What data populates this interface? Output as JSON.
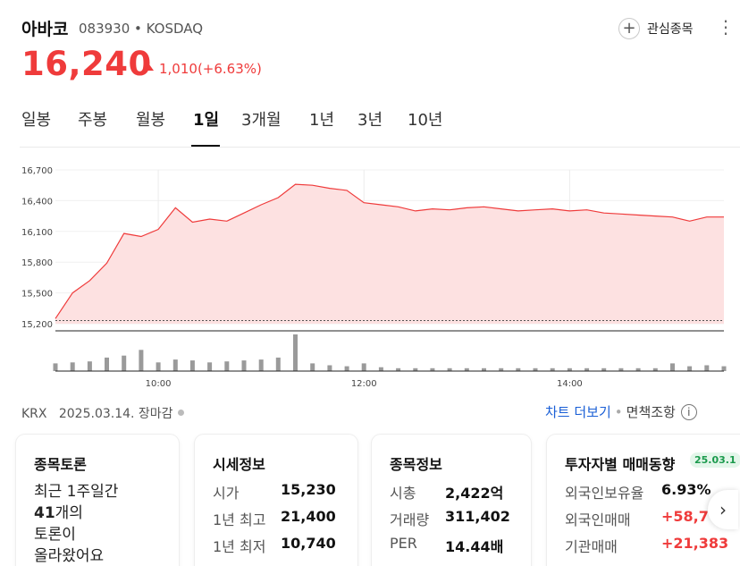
{
  "stock": {
    "name": "아바코",
    "code_market": "083930 • KOSDAQ",
    "price": "16,240",
    "change": "1,010(+6.63%)"
  },
  "header": {
    "watchlist_label": "관심종목",
    "plus_icon": "plus-icon",
    "more_icon": "kebab-menu-icon"
  },
  "tabs": [
    {
      "label": "일봉",
      "active": false
    },
    {
      "label": "주봉",
      "active": false
    },
    {
      "label": "월봉",
      "active": false
    },
    {
      "label": "1일",
      "active": true
    },
    {
      "label": "3개월",
      "active": false
    },
    {
      "label": "1년",
      "active": false
    },
    {
      "label": "3년",
      "active": false
    },
    {
      "label": "10년",
      "active": false
    }
  ],
  "colors": {
    "up": "#ef3b3b",
    "area_fill": "#fde1e1",
    "link": "#1a5fd6",
    "volume": "#9a9a9a"
  },
  "chart_data": {
    "type": "area",
    "y_ticks": [
      "16,700",
      "16,400",
      "16,100",
      "15,800",
      "15,500",
      "15,200"
    ],
    "ylim": [
      15200,
      16700
    ],
    "x_ticks": [
      "10:00",
      "12:00",
      "14:00"
    ],
    "prev_close": 15230,
    "x": [
      "09:00",
      "09:10",
      "09:20",
      "09:30",
      "09:40",
      "09:50",
      "10:00",
      "10:10",
      "10:20",
      "10:30",
      "10:40",
      "10:50",
      "11:00",
      "11:10",
      "11:20",
      "11:30",
      "11:40",
      "11:50",
      "12:00",
      "12:10",
      "12:20",
      "12:30",
      "12:40",
      "12:50",
      "13:00",
      "13:10",
      "13:20",
      "13:30",
      "13:40",
      "13:50",
      "14:00",
      "14:10",
      "14:20",
      "14:30",
      "14:40",
      "14:50",
      "15:00",
      "15:10",
      "15:20",
      "15:30"
    ],
    "price": [
      15250,
      15500,
      15620,
      15790,
      16080,
      16050,
      16120,
      16330,
      16190,
      16220,
      16200,
      16280,
      16360,
      16430,
      16560,
      16550,
      16520,
      16500,
      16380,
      16360,
      16340,
      16300,
      16320,
      16310,
      16330,
      16340,
      16320,
      16300,
      16310,
      16320,
      16300,
      16310,
      16280,
      16270,
      16260,
      16250,
      16240,
      16200,
      16240,
      16240
    ],
    "volume": [
      8,
      9,
      10,
      14,
      16,
      22,
      9,
      12,
      11,
      9,
      10,
      11,
      12,
      14,
      38,
      8,
      6,
      5,
      8,
      4,
      3,
      3,
      3,
      3,
      3,
      3,
      3,
      3,
      3,
      3,
      3,
      3,
      3,
      3,
      3,
      3,
      8,
      5,
      6,
      5
    ],
    "exchange": "KRX",
    "date_status": "2025.03.14. 장마감"
  },
  "links": {
    "chart_more": "차트 더보기",
    "separator": "•",
    "disclaimer": "면책조항",
    "info_icon": "info-icon"
  },
  "cards": {
    "discussion": {
      "title": "종목토론",
      "line1": "최근 1주일간",
      "count": "41",
      "line2": "개의",
      "line3": "토론이",
      "line4": "올라왔어요"
    },
    "quote": {
      "title": "시세정보",
      "rows": [
        {
          "k": "시가",
          "v": "15,230"
        },
        {
          "k": "1년 최고",
          "v": "21,400"
        },
        {
          "k": "1년 최저",
          "v": "10,740"
        }
      ]
    },
    "info": {
      "title": "종목정보",
      "rows": [
        {
          "k": "시총",
          "v": "2,422억"
        },
        {
          "k": "거래량",
          "v": "311,402"
        },
        {
          "k": "PER",
          "v": "14.44배"
        }
      ]
    },
    "investor": {
      "title": "투자자별 매매동향",
      "badge": "25.03.1",
      "rows": [
        {
          "k": "외국인보유율",
          "v": "6.93%"
        },
        {
          "k": "외국인매매",
          "v": "+58,7"
        },
        {
          "k": "기관매매",
          "v": "+21,383"
        }
      ]
    },
    "next_icon": "chevron-right-icon"
  }
}
